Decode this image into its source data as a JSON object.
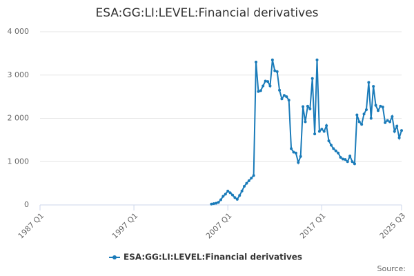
{
  "chart_data": {
    "type": "line",
    "title": "ESA:GG:LI:LEVEL:Financial derivatives",
    "source": "Source:",
    "x": [
      "2005 Q2",
      "2005 Q3",
      "2005 Q4",
      "2006 Q1",
      "2006 Q2",
      "2006 Q3",
      "2006 Q4",
      "2007 Q1",
      "2007 Q2",
      "2007 Q3",
      "2007 Q4",
      "2008 Q1",
      "2008 Q2",
      "2008 Q3",
      "2008 Q4",
      "2009 Q1",
      "2009 Q2",
      "2009 Q3",
      "2009 Q4",
      "2010 Q1",
      "2010 Q2",
      "2010 Q3",
      "2010 Q4",
      "2011 Q1",
      "2011 Q2",
      "2011 Q3",
      "2011 Q4",
      "2012 Q1",
      "2012 Q2",
      "2012 Q3",
      "2012 Q4",
      "2013 Q1",
      "2013 Q2",
      "2013 Q3",
      "2013 Q4",
      "2014 Q1",
      "2014 Q2",
      "2014 Q3",
      "2014 Q4",
      "2015 Q1",
      "2015 Q2",
      "2015 Q3",
      "2015 Q4",
      "2016 Q1",
      "2016 Q2",
      "2016 Q3",
      "2016 Q4",
      "2017 Q1",
      "2017 Q2",
      "2017 Q3",
      "2017 Q4",
      "2018 Q1",
      "2018 Q2",
      "2018 Q3",
      "2018 Q4",
      "2019 Q1",
      "2019 Q2",
      "2019 Q3",
      "2019 Q4",
      "2020 Q1",
      "2020 Q2",
      "2020 Q3",
      "2020 Q4",
      "2021 Q1",
      "2021 Q2",
      "2021 Q3",
      "2021 Q4",
      "2022 Q1",
      "2022 Q2",
      "2022 Q3",
      "2022 Q4",
      "2023 Q1",
      "2023 Q2",
      "2023 Q3",
      "2023 Q4",
      "2024 Q1",
      "2024 Q2",
      "2024 Q3",
      "2024 Q4",
      "2025 Q1",
      "2025 Q2",
      "2025 Q3"
    ],
    "series": [
      {
        "name": "ESA:GG:LI:LEVEL:Financial derivatives",
        "color": "#1a7bb9",
        "values": [
          20,
          30,
          40,
          60,
          120,
          200,
          250,
          320,
          280,
          230,
          170,
          130,
          220,
          320,
          430,
          500,
          560,
          620,
          680,
          3300,
          2620,
          2640,
          2750,
          2860,
          2850,
          2750,
          3350,
          3100,
          3080,
          2650,
          2450,
          2530,
          2500,
          2420,
          1300,
          1220,
          1200,
          980,
          1120,
          2270,
          1920,
          2280,
          2220,
          2920,
          1640,
          3350,
          1700,
          1750,
          1700,
          1830,
          1480,
          1380,
          1300,
          1250,
          1200,
          1100,
          1060,
          1050,
          1000,
          1130,
          1000,
          950,
          2080,
          1920,
          1860,
          2100,
          2200,
          2830,
          2000,
          2740,
          2300,
          2180,
          2280,
          2260,
          1900,
          1950,
          1920,
          2040,
          1700,
          1820,
          1550,
          1720
        ]
      }
    ],
    "xlim": [
      "1987 Q1",
      "2025 Q3"
    ],
    "xticks": [
      "1987 Q1",
      "1997 Q1",
      "2007 Q1",
      "2017 Q1",
      "2025 Q3"
    ],
    "ylim": [
      0,
      4000
    ],
    "yticks": [
      0,
      {
        "value": 1000,
        "label": "1 000"
      },
      {
        "value": 2000,
        "label": "2 000"
      },
      {
        "value": 3000,
        "label": "3 000"
      },
      {
        "value": 4000,
        "label": "4 000"
      }
    ],
    "grid": true
  }
}
